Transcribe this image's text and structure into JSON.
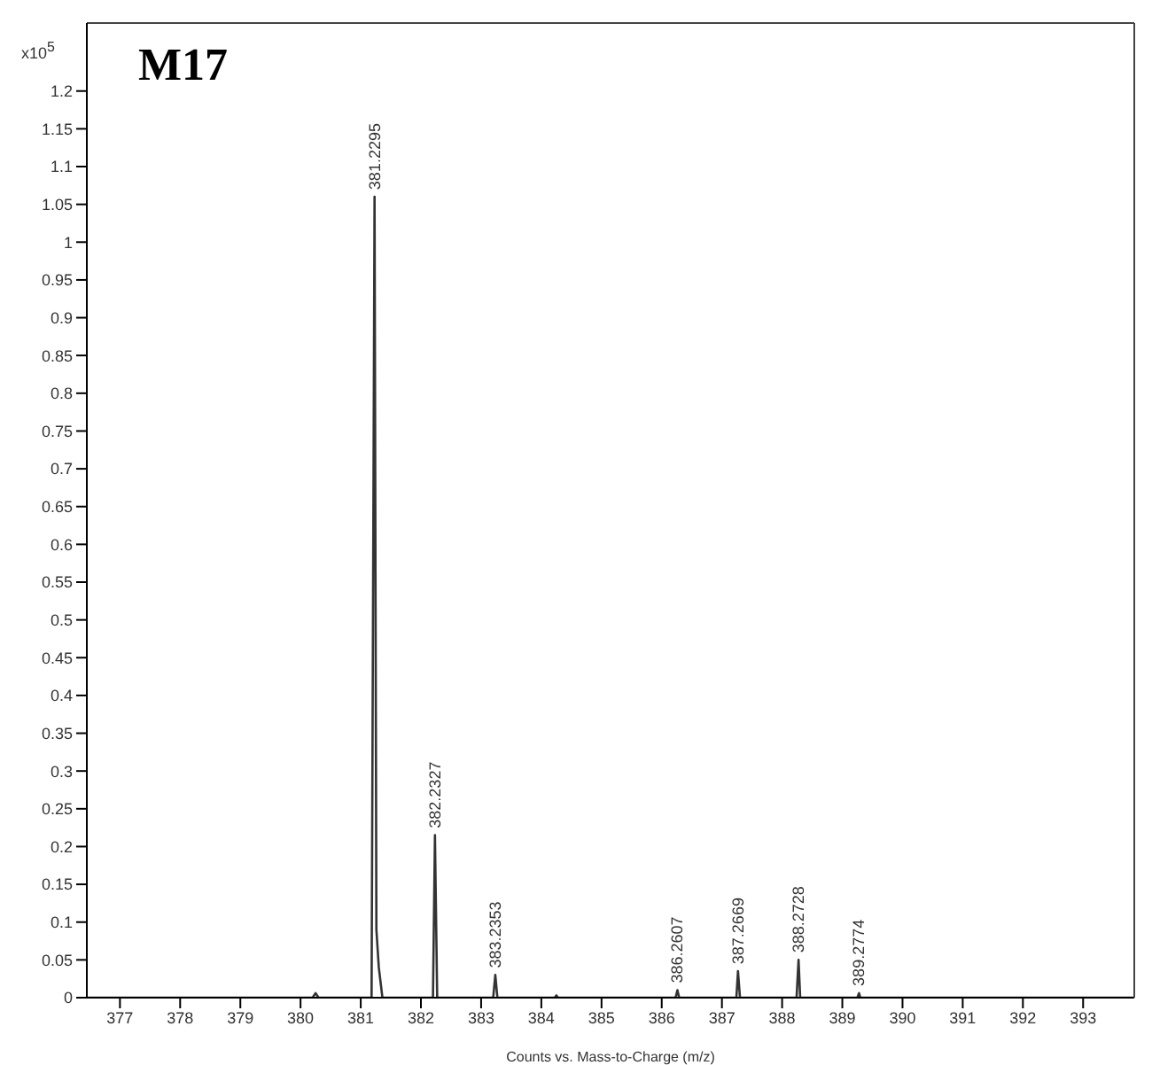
{
  "chart_data": {
    "type": "line",
    "title": "M17",
    "xlabel": "Counts vs. Mass-to-Charge (m/z)",
    "ylabel": "x10$^{5}$",
    "series": [
      {
        "color": "#333333",
        "x": [
          376.45,
          380.2,
          380.25,
          380.3,
          381.18,
          381.2295,
          381.26,
          381.3,
          381.36,
          382.2,
          382.2327,
          382.27,
          383.2,
          383.2353,
          383.27,
          384.22,
          384.25,
          384.28,
          386.23,
          386.2607,
          386.29,
          387.24,
          387.2669,
          387.3,
          388.24,
          388.2728,
          388.3,
          389.25,
          389.2774,
          389.3,
          393.85
        ],
        "values": [
          0,
          0,
          0.006,
          0,
          0,
          1.06,
          0.09,
          0.04,
          0,
          0,
          0.215,
          0,
          0,
          0.03,
          0,
          0,
          0.003,
          0,
          0,
          0.01,
          0,
          0,
          0.035,
          0,
          0,
          0.05,
          0,
          0,
          0.006,
          0,
          0
        ]
      }
    ],
    "xlim": [
      376.45,
      393.85
    ],
    "xticks": [
      377,
      378,
      379,
      380,
      381,
      382,
      383,
      384,
      385,
      386,
      387,
      388,
      389,
      390,
      391,
      392,
      393
    ],
    "ylim": [
      0,
      1.29
    ],
    "yticks": [
      0,
      0.05,
      0.1,
      0.15,
      0.2,
      0.25,
      0.3,
      0.35,
      0.4,
      0.45,
      0.5,
      0.55,
      0.6,
      0.65,
      0.7,
      0.75,
      0.8,
      0.85,
      0.9,
      0.95,
      1,
      1.05,
      1.1,
      1.15,
      1.2
    ],
    "annotations": [
      {
        "text": "381.2295",
        "x": 381.2295,
        "y": 1.06
      },
      {
        "text": "382.2327",
        "x": 382.2327,
        "y": 0.215
      },
      {
        "text": "383.2353",
        "x": 383.2353,
        "y": 0.03
      },
      {
        "text": "386.2607",
        "x": 386.2607,
        "y": 0.01
      },
      {
        "text": "387.2669",
        "x": 387.2669,
        "y": 0.035
      },
      {
        "text": "388.2728",
        "x": 388.2728,
        "y": 0.05
      },
      {
        "text": "389.2774",
        "x": 389.2774,
        "y": 0.006
      }
    ],
    "legend": false,
    "marker": "none",
    "line_style": "solid"
  }
}
